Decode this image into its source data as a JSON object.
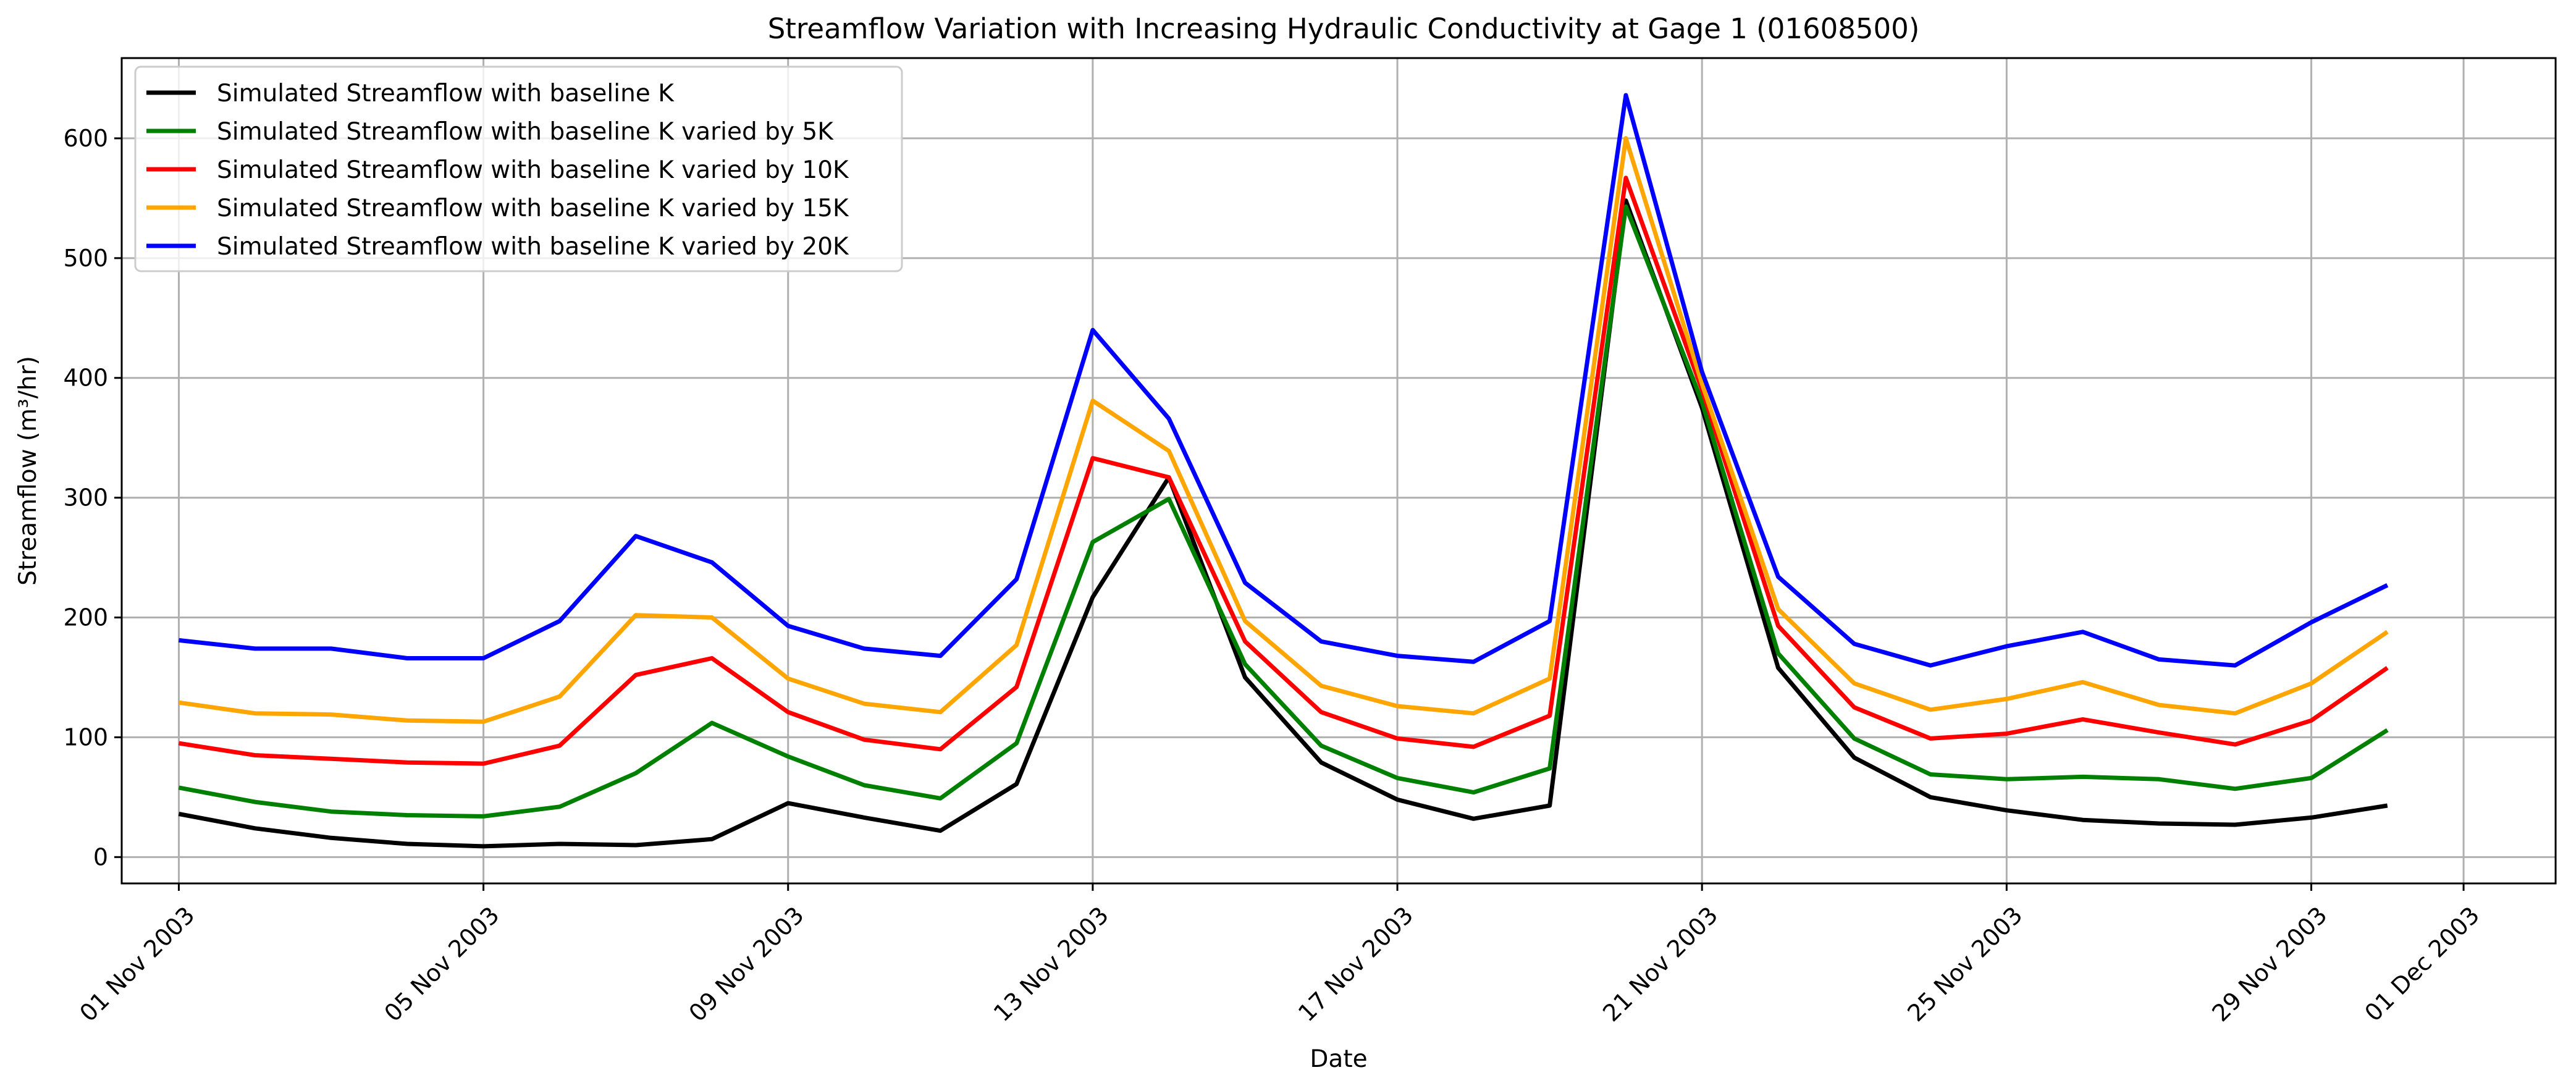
{
  "chart_data": {
    "type": "line",
    "title": "Streamflow Variation with Increasing Hydraulic Conductivity at Gage 1 (01608500)",
    "xlabel": "Date",
    "ylabel": "Streamflow (m³/hr)",
    "x": [
      "2003-11-01",
      "2003-11-02",
      "2003-11-03",
      "2003-11-04",
      "2003-11-05",
      "2003-11-06",
      "2003-11-07",
      "2003-11-08",
      "2003-11-09",
      "2003-11-10",
      "2003-11-11",
      "2003-11-12",
      "2003-11-13",
      "2003-11-14",
      "2003-11-15",
      "2003-11-16",
      "2003-11-17",
      "2003-11-18",
      "2003-11-19",
      "2003-11-20",
      "2003-11-21",
      "2003-11-22",
      "2003-11-23",
      "2003-11-24",
      "2003-11-25",
      "2003-11-26",
      "2003-11-27",
      "2003-11-28",
      "2003-11-29",
      "2003-11-30"
    ],
    "xlim": [
      "2003-10-31T06:00",
      "2003-12-02T05:00"
    ],
    "xticks": [
      {
        "date": "2003-11-01",
        "label": "01 Nov 2003"
      },
      {
        "date": "2003-11-05",
        "label": "05 Nov 2003"
      },
      {
        "date": "2003-11-09",
        "label": "09 Nov 2003"
      },
      {
        "date": "2003-11-13",
        "label": "13 Nov 2003"
      },
      {
        "date": "2003-11-17",
        "label": "17 Nov 2003"
      },
      {
        "date": "2003-11-21",
        "label": "21 Nov 2003"
      },
      {
        "date": "2003-11-25",
        "label": "25 Nov 2003"
      },
      {
        "date": "2003-11-29",
        "label": "29 Nov 2003"
      },
      {
        "date": "2003-12-01",
        "label": "01 Dec 2003"
      }
    ],
    "ylim": [
      -22,
      667
    ],
    "yticks": [
      0,
      100,
      200,
      300,
      400,
      500,
      600
    ],
    "grid": true,
    "legend_position": "upper-left",
    "series": [
      {
        "name": "Simulated Streamflow with baseline K",
        "color": "#000000",
        "values": [
          36,
          24,
          16,
          11,
          9,
          11,
          10,
          15,
          45,
          33,
          22,
          61,
          217,
          317,
          150,
          79,
          48,
          32,
          43,
          548,
          375,
          158,
          83,
          50,
          39,
          31,
          28,
          27,
          33,
          43
        ]
      },
      {
        "name": "Simulated Streamflow with baseline K varied by 5K",
        "color": "#008000",
        "values": [
          58,
          46,
          38,
          35,
          34,
          42,
          70,
          112,
          84,
          60,
          49,
          95,
          263,
          299,
          161,
          93,
          66,
          54,
          74,
          543,
          380,
          170,
          99,
          69,
          65,
          67,
          65,
          57,
          66,
          106
        ]
      },
      {
        "name": "Simulated Streamflow with baseline K varied by 10K",
        "color": "#ff0000",
        "values": [
          95,
          85,
          82,
          79,
          78,
          93,
          152,
          166,
          121,
          98,
          90,
          142,
          333,
          317,
          180,
          121,
          99,
          92,
          118,
          567,
          390,
          193,
          125,
          99,
          103,
          115,
          104,
          94,
          114,
          158
        ]
      },
      {
        "name": "Simulated Streamflow with baseline K varied by 15K",
        "color": "#ffa500",
        "values": [
          129,
          120,
          119,
          114,
          113,
          134,
          202,
          200,
          149,
          128,
          121,
          177,
          381,
          339,
          197,
          143,
          126,
          120,
          149,
          600,
          395,
          207,
          145,
          123,
          132,
          146,
          127,
          120,
          145,
          188
        ]
      },
      {
        "name": "Simulated Streamflow with baseline K varied by 20K",
        "color": "#0000ff",
        "values": [
          181,
          174,
          174,
          166,
          166,
          197,
          268,
          246,
          193,
          174,
          168,
          232,
          440,
          366,
          229,
          180,
          168,
          163,
          197,
          636,
          405,
          234,
          178,
          160,
          176,
          188,
          165,
          160,
          196,
          227
        ]
      }
    ]
  }
}
